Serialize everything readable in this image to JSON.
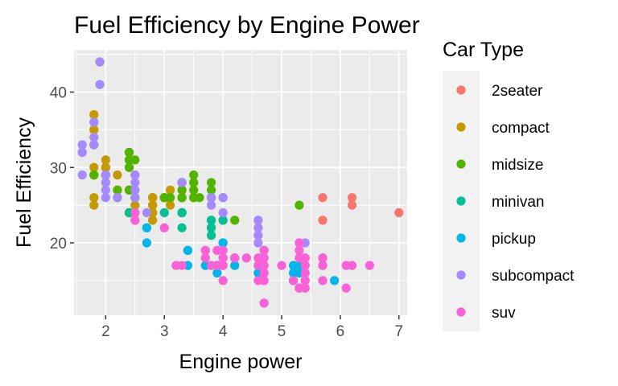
{
  "chart_data": {
    "type": "scatter",
    "title": "Fuel Efficiency by Engine Power",
    "xlabel": "Engine power",
    "ylabel": "Fuel Efficiency",
    "xlim": [
      1.46,
      7.14
    ],
    "ylim": [
      10.4,
      45.6
    ],
    "x_ticks": [
      2,
      3,
      4,
      5,
      6,
      7
    ],
    "y_ticks": [
      20,
      30,
      40
    ],
    "grid": true,
    "legend_title": "Car Type",
    "legend_position": "right",
    "series": [
      {
        "name": "2seater",
        "color": "#F8766D",
        "points": [
          [
            5.7,
            26
          ],
          [
            5.7,
            23
          ],
          [
            6.2,
            26
          ],
          [
            6.2,
            25
          ],
          [
            7.0,
            24
          ]
        ]
      },
      {
        "name": "compact",
        "color": "#C49A00",
        "points": [
          [
            1.8,
            29
          ],
          [
            1.8,
            29
          ],
          [
            2.0,
            31
          ],
          [
            2.0,
            30
          ],
          [
            2.8,
            26
          ],
          [
            2.8,
            26
          ],
          [
            3.1,
            27
          ],
          [
            1.8,
            26
          ],
          [
            1.8,
            25
          ],
          [
            2.0,
            28
          ],
          [
            2.0,
            29
          ],
          [
            2.8,
            25
          ],
          [
            2.8,
            25
          ],
          [
            3.1,
            25
          ],
          [
            2.2,
            27
          ],
          [
            2.2,
            29
          ],
          [
            2.4,
            31
          ],
          [
            2.4,
            31
          ],
          [
            3.0,
            26
          ],
          [
            3.0,
            26
          ],
          [
            3.3,
            27
          ],
          [
            1.8,
            33
          ],
          [
            1.8,
            35
          ],
          [
            1.8,
            37
          ],
          [
            1.8,
            35
          ],
          [
            2.0,
            29
          ],
          [
            2.0,
            29
          ],
          [
            2.0,
            29
          ],
          [
            2.5,
            29
          ],
          [
            2.5,
            29
          ],
          [
            2.8,
            23
          ],
          [
            2.8,
            24
          ],
          [
            1.9,
            44
          ],
          [
            2.0,
            30
          ],
          [
            2.5,
            24
          ],
          [
            1.8,
            30
          ],
          [
            1.8,
            33
          ],
          [
            2.0,
            30
          ],
          [
            2.0,
            29
          ],
          [
            2.8,
            24
          ],
          [
            2.8,
            24
          ],
          [
            3.1,
            26
          ],
          [
            2.8,
            26
          ],
          [
            2.4,
            27
          ],
          [
            2.4,
            30
          ],
          [
            2.5,
            25
          ]
        ]
      },
      {
        "name": "midsize",
        "color": "#53B400",
        "points": [
          [
            2.4,
            30
          ],
          [
            2.4,
            27
          ],
          [
            3.1,
            26
          ],
          [
            3.5,
            29
          ],
          [
            3.6,
            26
          ],
          [
            2.4,
            31
          ],
          [
            3.0,
            26
          ],
          [
            3.3,
            26
          ],
          [
            3.3,
            26
          ],
          [
            3.3,
            28
          ],
          [
            3.8,
            26
          ],
          [
            3.8,
            26
          ],
          [
            3.8,
            26
          ],
          [
            5.3,
            25
          ],
          [
            2.4,
            32
          ],
          [
            2.4,
            32
          ],
          [
            2.5,
            31
          ],
          [
            3.5,
            27
          ],
          [
            3.5,
            28
          ],
          [
            3.5,
            26
          ],
          [
            3.8,
            28
          ],
          [
            3.8,
            27
          ],
          [
            4.0,
            26
          ],
          [
            2.4,
            27
          ],
          [
            3.0,
            26
          ],
          [
            3.0,
            26
          ],
          [
            3.5,
            26
          ],
          [
            4.2,
            23
          ],
          [
            2.2,
            26
          ],
          [
            2.2,
            27
          ],
          [
            3.3,
            26
          ],
          [
            3.3,
            28
          ],
          [
            1.8,
            29
          ],
          [
            2.4,
            24
          ],
          [
            2.4,
            24
          ],
          [
            2.5,
            26
          ],
          [
            2.5,
            26
          ],
          [
            3.3,
            27
          ],
          [
            3.8,
            23
          ],
          [
            3.8,
            22
          ],
          [
            3.8,
            21
          ],
          [
            4.0,
            23
          ],
          [
            3.3,
            24
          ]
        ]
      },
      {
        "name": "minivan",
        "color": "#00C094",
        "points": [
          [
            2.4,
            24
          ],
          [
            3.0,
            24
          ],
          [
            3.3,
            22
          ],
          [
            3.3,
            24
          ],
          [
            3.3,
            24
          ],
          [
            3.3,
            24
          ],
          [
            3.8,
            23
          ],
          [
            3.8,
            22
          ],
          [
            3.8,
            21
          ],
          [
            4.0,
            23
          ],
          [
            2.5,
            24
          ]
        ]
      },
      {
        "name": "pickup",
        "color": "#00B6EB",
        "points": [
          [
            2.7,
            20
          ],
          [
            2.7,
            22
          ],
          [
            2.7,
            22
          ],
          [
            3.4,
            19
          ],
          [
            3.4,
            19
          ],
          [
            3.4,
            17
          ],
          [
            3.7,
            17
          ],
          [
            3.9,
            16
          ],
          [
            3.9,
            17
          ],
          [
            4.0,
            20
          ],
          [
            4.0,
            18
          ],
          [
            4.0,
            17
          ],
          [
            4.2,
            17
          ],
          [
            4.6,
            17
          ],
          [
            4.6,
            16
          ],
          [
            4.7,
            17
          ],
          [
            4.7,
            17
          ],
          [
            4.7,
            19
          ],
          [
            4.7,
            12
          ],
          [
            5.2,
            17
          ],
          [
            5.2,
            15
          ],
          [
            5.2,
            16
          ],
          [
            5.4,
            16
          ],
          [
            5.4,
            17
          ],
          [
            5.4,
            15
          ],
          [
            5.7,
            17
          ],
          [
            5.9,
            15
          ],
          [
            4.7,
            19
          ],
          [
            5.3,
            17
          ],
          [
            5.3,
            16
          ],
          [
            4.0,
            20
          ],
          [
            4.7,
            18
          ],
          [
            5.2,
            15
          ]
        ]
      },
      {
        "name": "subcompact",
        "color": "#A58AFF",
        "points": [
          [
            1.6,
            33
          ],
          [
            1.6,
            32
          ],
          [
            1.6,
            32
          ],
          [
            1.6,
            29
          ],
          [
            1.8,
            34
          ],
          [
            1.8,
            36
          ],
          [
            1.8,
            36
          ],
          [
            1.9,
            44
          ],
          [
            1.9,
            41
          ],
          [
            2.0,
            29
          ],
          [
            2.0,
            26
          ],
          [
            2.0,
            28
          ],
          [
            2.2,
            26
          ],
          [
            2.5,
            27
          ],
          [
            2.5,
            26
          ],
          [
            2.5,
            29
          ],
          [
            2.5,
            26
          ],
          [
            2.5,
            24
          ],
          [
            2.7,
            24
          ],
          [
            3.8,
            26
          ],
          [
            3.8,
            25
          ],
          [
            4.0,
            24
          ],
          [
            4.6,
            23
          ],
          [
            4.6,
            22
          ],
          [
            4.6,
            21
          ],
          [
            5.4,
            20
          ],
          [
            2.5,
            28
          ],
          [
            2.0,
            27
          ],
          [
            2.0,
            29
          ],
          [
            2.5,
            27
          ],
          [
            3.3,
            28
          ],
          [
            4.0,
            26
          ],
          [
            4.6,
            20
          ],
          [
            1.8,
            33
          ]
        ]
      },
      {
        "name": "suv",
        "color": "#FB61D7",
        "points": [
          [
            5.7,
            15
          ],
          [
            5.7,
            18
          ],
          [
            6.2,
            17
          ],
          [
            5.3,
            19
          ],
          [
            5.3,
            20
          ],
          [
            5.3,
            14
          ],
          [
            5.3,
            18
          ],
          [
            5.3,
            14
          ],
          [
            5.7,
            18
          ],
          [
            6.5,
            17
          ],
          [
            3.7,
            19
          ],
          [
            3.7,
            18
          ],
          [
            3.9,
            17
          ],
          [
            4.7,
            17
          ],
          [
            4.7,
            19
          ],
          [
            4.7,
            12
          ],
          [
            4.7,
            19
          ],
          [
            4.7,
            18
          ],
          [
            5.2,
            15
          ],
          [
            5.7,
            17
          ],
          [
            3.0,
            22
          ],
          [
            3.7,
            19
          ],
          [
            4.0,
            18
          ],
          [
            4.0,
            19
          ],
          [
            4.7,
            17
          ],
          [
            4.7,
            15
          ],
          [
            5.0,
            17
          ],
          [
            5.4,
            18
          ],
          [
            5.4,
            17
          ],
          [
            5.4,
            15
          ],
          [
            5.4,
            16
          ],
          [
            4.0,
            17
          ],
          [
            4.4,
            18
          ],
          [
            4.6,
            18
          ],
          [
            4.6,
            17
          ],
          [
            5.4,
            18
          ],
          [
            4.0,
            15
          ],
          [
            4.6,
            15
          ],
          [
            5.4,
            14
          ],
          [
            6.1,
            17
          ],
          [
            6.1,
            14
          ],
          [
            2.5,
            23
          ],
          [
            3.2,
            17
          ],
          [
            3.3,
            17
          ],
          [
            3.9,
            17
          ],
          [
            4.2,
            18
          ],
          [
            4.7,
            15
          ],
          [
            4.7,
            16
          ],
          [
            4.7,
            16
          ],
          [
            3.8,
            17
          ],
          [
            4.2,
            18
          ],
          [
            2.5,
            24
          ],
          [
            2.5,
            23
          ],
          [
            4.0,
            17
          ],
          [
            4.0,
            19
          ],
          [
            3.9,
            19
          ]
        ]
      }
    ]
  }
}
